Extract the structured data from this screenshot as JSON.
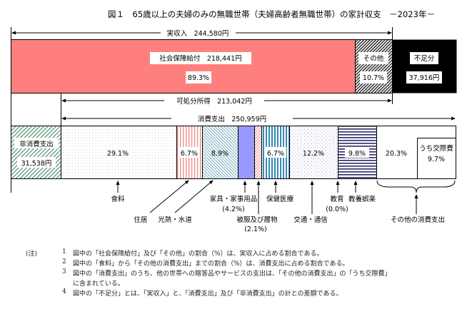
{
  "chart_data": {
    "type": "bar",
    "title": "図１　65歳以上の夫婦のみの無職世帯（夫婦高齢者無職世帯）の家計収支　－2023年－",
    "income": {
      "label": "実収入　244,580円",
      "total_yen": 244580,
      "segments": [
        {
          "name": "社会保障給付",
          "value_label": "社会保障給付　218,441円",
          "yen": 218441,
          "pct_label": "89.3%",
          "pct": 89.3,
          "color": "#ff7f7f"
        },
        {
          "name": "その他",
          "pct_label": "10.7%",
          "pct": 10.7
        },
        {
          "name": "不足分",
          "amount_label": "37,916円",
          "yen": 37916,
          "color": "#000000"
        }
      ]
    },
    "disposable_income": {
      "label": "可処分所得　213,042円",
      "yen": 213042
    },
    "consumption": {
      "label": "消費支出　250,959円",
      "yen": 250959
    },
    "non_consumption": {
      "name": "非消費支出",
      "amount_label": "31,538円",
      "yen": 31538
    },
    "categories": [
      {
        "name": "食料",
        "pct": 29.1,
        "label": "29.1%"
      },
      {
        "name": "住居",
        "pct": 6.7,
        "label": "6.7%"
      },
      {
        "name": "光熱・水道",
        "pct": 8.9,
        "label": "8.9%"
      },
      {
        "name": "家具・家事用品",
        "pct": 4.2,
        "label": "(4.2%)"
      },
      {
        "name": "被服及び履物",
        "pct": 2.1,
        "label": "(2.1%)"
      },
      {
        "name": "保健医療",
        "pct": 6.7,
        "label": "6.7%"
      },
      {
        "name": "交通・通信",
        "pct": 12.2,
        "label": "12.2%"
      },
      {
        "name": "教育",
        "pct": 0.0,
        "label": "(0.0%)"
      },
      {
        "name": "教養娯楽",
        "pct": 9.8,
        "label": "9.8%"
      },
      {
        "name": "その他の消費支出",
        "pct": 20.3,
        "label": "20.3%"
      }
    ],
    "sub_item": {
      "name": "うち交際費",
      "pct": 9.7,
      "label": "9.7%"
    }
  },
  "notes": {
    "heading": "(注)",
    "items": [
      {
        "num": "1",
        "text": "図中の「社会保障給付」及び「その他」の割合（%）は、実収入に占める割合である。"
      },
      {
        "num": "2",
        "text": "図中の「食料」から「その他の消費支出」までの割合（%）は、消費支出に占める割合である。"
      },
      {
        "num": "3",
        "text": "図中の「消費支出」のうち、他の世帯への贈答品やサービスの支出は、「その他の消費支出」の「うち交際費」"
      },
      {
        "num": "",
        "text": "に含まれている。"
      },
      {
        "num": "4",
        "text": "図中の「不足分」とは、「実収入」と、「消費支出」及び「非消費支出」の計との差額である。"
      }
    ]
  }
}
